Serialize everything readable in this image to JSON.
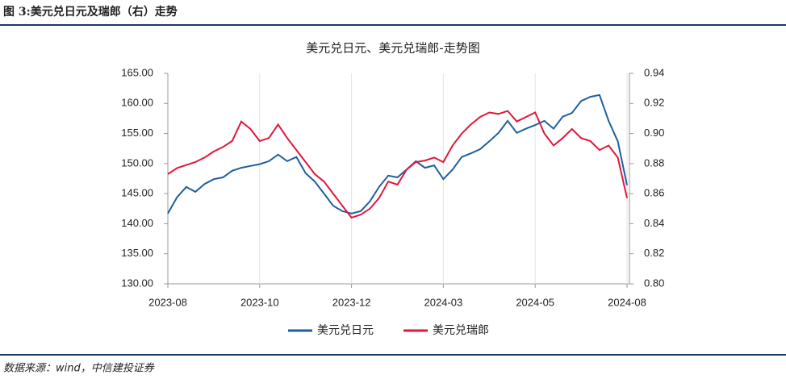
{
  "header": "图 3:美元兑日元及瑞郎（右）走势",
  "source": "数据来源：wind，中信建投证券",
  "chart_data": {
    "type": "line",
    "title": "美元兑日元、美元兑瑞郎-走势图",
    "categories": [
      "2023-08",
      null,
      null,
      null,
      null,
      null,
      null,
      null,
      null,
      null,
      "2023-10",
      null,
      null,
      null,
      null,
      null,
      null,
      null,
      null,
      null,
      "2023-12",
      null,
      null,
      null,
      null,
      null,
      null,
      null,
      null,
      null,
      "2024-03",
      null,
      null,
      null,
      null,
      null,
      null,
      null,
      null,
      null,
      "2024-05",
      null,
      null,
      null,
      null,
      null,
      null,
      null,
      null,
      null,
      "2024-08"
    ],
    "series": [
      {
        "name": "美元兑日元",
        "color": "#1f5f9e",
        "values": [
          141.7,
          144.4,
          146.1,
          145.3,
          146.6,
          147.4,
          147.7,
          148.8,
          149.3,
          149.6,
          149.9,
          150.4,
          151.5,
          150.4,
          151.1,
          148.4,
          147.0,
          145.0,
          143.0,
          142.1,
          141.7,
          142.1,
          143.7,
          146.1,
          148.0,
          147.7,
          149.0,
          150.4,
          149.3,
          149.7,
          147.4,
          149.0,
          151.1,
          151.7,
          152.4,
          153.7,
          155.1,
          157.1,
          155.1,
          155.8,
          156.4,
          157.1,
          155.8,
          157.8,
          158.4,
          160.4,
          161.1,
          161.4,
          157.1,
          153.7,
          146.4
        ]
      },
      {
        "name": "美元兑瑞郎",
        "color": "#e0173b",
        "axis": "y2",
        "values": [
          0.873,
          0.877,
          0.879,
          0.881,
          0.884,
          0.888,
          0.891,
          0.895,
          0.908,
          0.903,
          0.895,
          0.897,
          0.906,
          0.897,
          0.889,
          0.881,
          0.873,
          0.868,
          0.86,
          0.852,
          0.844,
          0.846,
          0.85,
          0.857,
          0.868,
          0.866,
          0.876,
          0.881,
          0.882,
          0.884,
          0.881,
          0.892,
          0.9,
          0.906,
          0.911,
          0.914,
          0.913,
          0.915,
          0.908,
          0.911,
          0.914,
          0.9,
          0.892,
          0.897,
          0.903,
          0.897,
          0.895,
          0.889,
          0.892,
          0.884,
          0.857
        ]
      }
    ],
    "ylim": [
      130,
      165
    ],
    "yticks": [
      {
        "value": 130,
        "label": "130.00"
      },
      {
        "value": 135,
        "label": "135.00"
      },
      {
        "value": 140,
        "label": "140.00"
      },
      {
        "value": 145,
        "label": "145.00"
      },
      {
        "value": 150,
        "label": "150.00"
      },
      {
        "value": 155,
        "label": "155.00"
      },
      {
        "value": 160,
        "label": "160.00"
      },
      {
        "value": 165,
        "label": "165.00"
      }
    ],
    "y2lim": [
      0.8,
      0.94
    ],
    "y2ticks": [
      {
        "value": 0.8,
        "label": "0.80"
      },
      0.82,
      0.84,
      0.86,
      0.88,
      {
        "value": 0.9,
        "label": "0.90"
      },
      0.92,
      0.94
    ],
    "legend": "bottom"
  }
}
